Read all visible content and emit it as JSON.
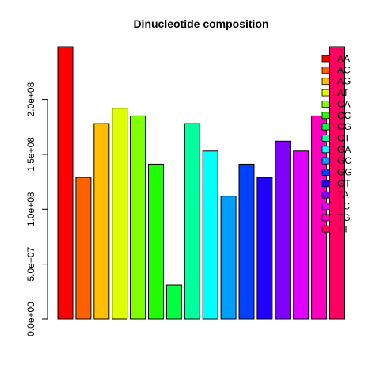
{
  "chart_data": {
    "type": "bar",
    "title": "Dinucleotide composition",
    "xlabel": "",
    "ylabel": "",
    "categories": [
      "AA",
      "AC",
      "AG",
      "AT",
      "CA",
      "CC",
      "CG",
      "CT",
      "GA",
      "GC",
      "GG",
      "GT",
      "TA",
      "TC",
      "TG",
      "TT"
    ],
    "values": [
      248000000,
      129000000,
      178000000,
      192000000,
      185000000,
      141000000,
      31000000,
      178000000,
      153000000,
      112000000,
      141000000,
      129000000,
      162000000,
      153000000,
      185000000,
      248000000
    ],
    "colors": [
      "#FF0000",
      "#FF6000",
      "#FFBF00",
      "#DFFF00",
      "#80FF00",
      "#20FF00",
      "#00FF40",
      "#00FF9F",
      "#00FFFF",
      "#009FFF",
      "#0040FF",
      "#2000FF",
      "#8000FF",
      "#DF00FF",
      "#FF00BF",
      "#FF0060"
    ],
    "yticks": [
      0,
      50000000,
      100000000,
      150000000,
      200000000
    ],
    "ytick_labels": [
      "0.0e+00",
      "5.0e+07",
      "1.0e+08",
      "1.5e+08",
      "2.0e+08"
    ],
    "ylim": [
      0,
      248000000
    ],
    "grid": false,
    "legend": {
      "position": "top-right",
      "entries": [
        "AA",
        "AC",
        "AG",
        "AT",
        "CA",
        "CC",
        "CG",
        "CT",
        "GA",
        "GC",
        "GG",
        "GT",
        "TA",
        "TC",
        "TG",
        "TT"
      ]
    }
  }
}
